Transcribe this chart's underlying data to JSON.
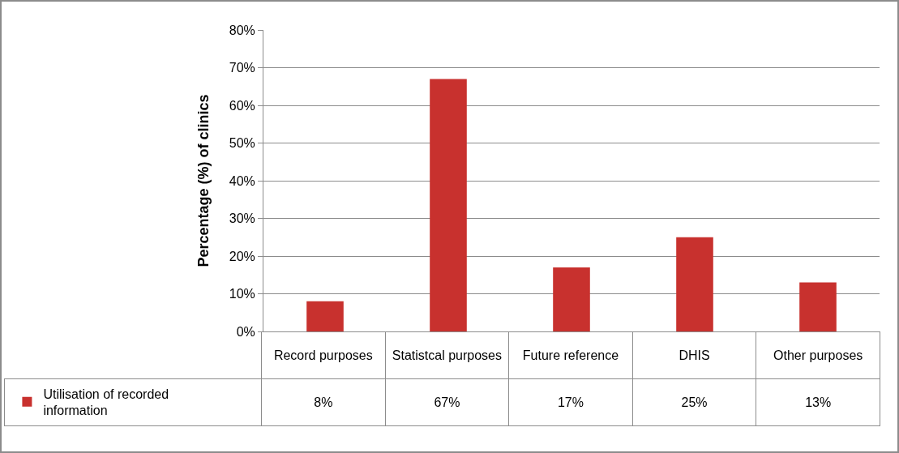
{
  "chart_data": {
    "type": "bar",
    "ylabel": "Percentage (%) of clinics",
    "categories": [
      "Record purposes",
      "Statistcal purposes",
      "Future reference",
      "DHIS",
      "Other purposes"
    ],
    "series": [
      {
        "name": "Utilisation of recorded information",
        "color": "#c8312e",
        "values": [
          8,
          67,
          17,
          25,
          13
        ],
        "value_labels": [
          "8%",
          "67%",
          "17%",
          "25%",
          "13%"
        ]
      }
    ],
    "ylim": [
      0,
      80
    ],
    "yticks": [
      {
        "value": 0,
        "label": "0%"
      },
      {
        "value": 10,
        "label": "10%"
      },
      {
        "value": 20,
        "label": "20%"
      },
      {
        "value": 30,
        "label": "30%"
      },
      {
        "value": 40,
        "label": "40%"
      },
      {
        "value": 50,
        "label": "50%"
      },
      {
        "value": 60,
        "label": "60%"
      },
      {
        "value": 70,
        "label": "70%"
      },
      {
        "value": 80,
        "label": "80%"
      }
    ],
    "grid": "y",
    "legend": "bottom left"
  }
}
